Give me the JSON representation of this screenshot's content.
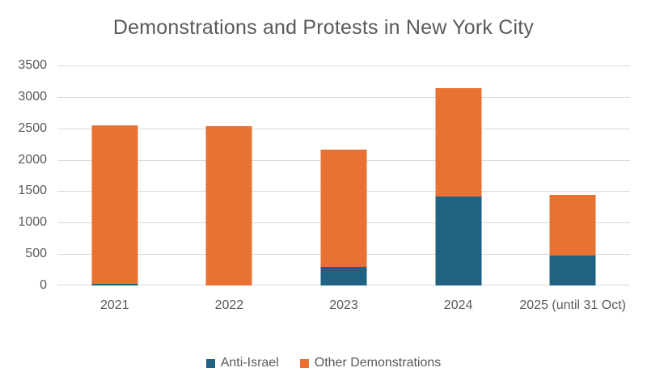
{
  "title": "Demonstrations and Protests in New York City",
  "colors": {
    "anti_israel": "#1f6282",
    "other_demonstrations": "#e97132",
    "grid": "#d9d9d9",
    "text": "#595959",
    "background": "#ffffff"
  },
  "chart_data": {
    "type": "bar",
    "stacked": true,
    "title": "Demonstrations and Protests in New York City",
    "categories": [
      "2021",
      "2022",
      "2023",
      "2024",
      "2025 (until 31 Oct)"
    ],
    "series": [
      {
        "name": "Anti-Israel",
        "color": "#1f6282",
        "values": [
          30,
          0,
          300,
          1420,
          480
        ]
      },
      {
        "name": "Other Demonstrations",
        "color": "#e97132",
        "values": [
          2520,
          2530,
          1860,
          1720,
          960
        ]
      }
    ],
    "totals": [
      2550,
      2530,
      2160,
      3140,
      1440
    ],
    "xlabel": "",
    "ylabel": "",
    "ylim": [
      0,
      3500
    ],
    "ytick_step": 500,
    "yticks": [
      "0",
      "500",
      "1000",
      "1500",
      "2000",
      "2500",
      "3000",
      "3500"
    ],
    "grid": true,
    "legend_position": "bottom"
  },
  "legend": {
    "items": [
      {
        "label": "Anti-Israel",
        "color": "#1f6282"
      },
      {
        "label": "Other Demonstrations",
        "color": "#e97132"
      }
    ]
  }
}
